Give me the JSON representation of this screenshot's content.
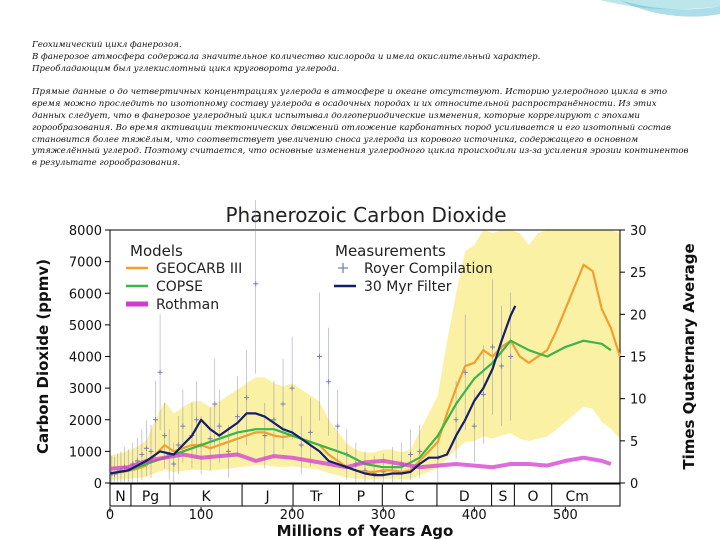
{
  "text": {
    "heading_lines": [
      "Геохимический цикл фанерозоя.",
      "В фанерозое атмосфера содержала значительное количество кислорода и имела окислительный характер.",
      "Преобладающим был углекислотный цикл круговорота углерода."
    ],
    "body": "Прямые данные о до четвертичных концентрациях углерода в атмосфере и океане отсутствуют. Историю углеродного цикла в это время можно проследить по изотопному составу углерода в осадочных породах и их относительной распространённости. Из этих данных следует, что в фанерозое углеродный цикл испытывал долгопериодические изменения, которые коррелируют с эпохами горообразования. Во время активации тектонических движений отложение карбонатных пород усиливается и его изотопный состав становится более тяжёлым, что соответствует увеличению сноса углерода из корового источника, содержащего в основном утяжелённый углерод. Поэтому считается, что основные изменения углеродного цикла происходили из-за усиления эрозии континентов в результате горообразования."
  },
  "chart_data": {
    "type": "line",
    "title": "Phanerozoic Carbon Dioxide",
    "xlabel": "Millions of Years Ago",
    "ylabel": "Carbon Dioxide (ppmv)",
    "y2label": "Times Quaternary Average",
    "xlim": [
      0,
      560
    ],
    "ylim": [
      0,
      8000
    ],
    "y2lim": [
      0,
      30
    ],
    "xticks": [
      0,
      100,
      200,
      300,
      400,
      500
    ],
    "yticks": [
      0,
      1000,
      2000,
      3000,
      4000,
      5000,
      6000,
      7000,
      8000
    ],
    "y2ticks": [
      0,
      5,
      10,
      15,
      20,
      25,
      30
    ],
    "legend_models_title": "Models",
    "legend_measurements_title": "Measurements",
    "series": [
      {
        "name": "GEOCARB III",
        "color": "#f0a030",
        "group": "Models",
        "x": [
          0,
          15,
          30,
          40,
          50,
          60,
          70,
          80,
          90,
          100,
          110,
          120,
          130,
          140,
          150,
          160,
          170,
          180,
          190,
          200,
          210,
          220,
          230,
          240,
          250,
          260,
          270,
          280,
          290,
          300,
          310,
          320,
          330,
          340,
          350,
          360,
          370,
          380,
          390,
          400,
          410,
          420,
          430,
          440,
          450,
          460,
          470,
          480,
          490,
          500,
          510,
          520,
          530,
          540,
          550,
          560
        ],
        "y": [
          300,
          350,
          450,
          550,
          900,
          1200,
          1000,
          1100,
          1200,
          1200,
          1100,
          1200,
          1300,
          1400,
          1500,
          1600,
          1600,
          1500,
          1450,
          1500,
          1400,
          1300,
          1200,
          900,
          700,
          500,
          400,
          350,
          350,
          400,
          400,
          350,
          400,
          700,
          1000,
          1300,
          2200,
          3000,
          3700,
          3800,
          4200,
          4000,
          4300,
          4500,
          4000,
          3800,
          4000,
          4200,
          4800,
          5500,
          6200,
          6900,
          6700,
          5500,
          4900,
          4000
        ]
      },
      {
        "name": "COPSE",
        "color": "#39b54a",
        "group": "Models",
        "x": [
          0,
          20,
          40,
          60,
          80,
          100,
          120,
          140,
          160,
          180,
          200,
          220,
          240,
          260,
          280,
          300,
          320,
          340,
          360,
          380,
          400,
          420,
          440,
          460,
          480,
          500,
          520,
          540,
          550
        ],
        "y": [
          300,
          400,
          600,
          800,
          1000,
          1200,
          1400,
          1600,
          1700,
          1700,
          1500,
          1300,
          1100,
          900,
          600,
          500,
          500,
          800,
          1500,
          2500,
          3300,
          3800,
          4500,
          4200,
          4000,
          4300,
          4500,
          4400,
          4200
        ]
      },
      {
        "name": "Rothman",
        "color": "#d23bd2",
        "group": "Models",
        "x": [
          0,
          20,
          40,
          60,
          80,
          100,
          120,
          140,
          160,
          180,
          200,
          220,
          240,
          260,
          280,
          300,
          320,
          340,
          360,
          380,
          400,
          420,
          440,
          460,
          480,
          500,
          520,
          540,
          550
        ],
        "y": [
          450,
          500,
          700,
          800,
          900,
          800,
          850,
          900,
          700,
          850,
          800,
          700,
          600,
          500,
          650,
          700,
          600,
          500,
          550,
          600,
          550,
          500,
          600,
          600,
          550,
          700,
          800,
          700,
          600
        ]
      },
      {
        "name": "30 Myr Filter",
        "color": "#14206e",
        "group": "Measurements",
        "x": [
          0,
          20,
          40,
          55,
          70,
          90,
          100,
          110,
          120,
          130,
          140,
          150,
          160,
          170,
          180,
          190,
          200,
          210,
          220,
          230,
          240,
          250,
          260,
          270,
          280,
          290,
          300,
          310,
          320,
          330,
          340,
          350,
          360,
          370,
          380,
          390,
          400,
          410,
          420,
          430,
          440,
          445
        ],
        "y": [
          300,
          400,
          700,
          1000,
          900,
          1500,
          2000,
          1700,
          1500,
          1700,
          1900,
          2200,
          2200,
          2100,
          1900,
          1700,
          1600,
          1400,
          1200,
          1000,
          700,
          600,
          500,
          400,
          300,
          250,
          250,
          300,
          300,
          350,
          600,
          800,
          800,
          900,
          1500,
          2000,
          2600,
          3000,
          3600,
          4500,
          5300,
          5600
        ]
      }
    ],
    "measurements": {
      "name": "Royer Compilation",
      "color": "#7a7fb8",
      "x": [
        2,
        5,
        8,
        12,
        16,
        20,
        25,
        30,
        35,
        40,
        45,
        50,
        55,
        60,
        65,
        70,
        75,
        80,
        90,
        95,
        100,
        110,
        115,
        120,
        130,
        140,
        150,
        160,
        170,
        180,
        190,
        200,
        210,
        220,
        230,
        240,
        250,
        260,
        270,
        280,
        290,
        300,
        310,
        320,
        330,
        340,
        360,
        380,
        390,
        400,
        410,
        420,
        430,
        440
      ],
      "y": [
        300,
        280,
        350,
        400,
        500,
        450,
        600,
        700,
        900,
        1100,
        1000,
        2000,
        3500,
        1500,
        900,
        600,
        1200,
        1800,
        1500,
        2000,
        1200,
        1400,
        2500,
        1800,
        1000,
        2100,
        2700,
        6300,
        1500,
        2000,
        2500,
        3000,
        1200,
        1600,
        4000,
        3200,
        1800,
        900,
        600,
        400,
        300,
        350,
        500,
        600,
        900,
        1000,
        800,
        2000,
        3500,
        1800,
        2800,
        4300,
        3700,
        4000
      ]
    },
    "uncertainty_band": {
      "label": "",
      "color": "#fbf1a4"
    },
    "periods": [
      "N",
      "Pg",
      "K",
      "J",
      "Tr",
      "P",
      "C",
      "D",
      "S",
      "O",
      "Cm"
    ],
    "period_boundaries": [
      0,
      23,
      66,
      145,
      201,
      252,
      299,
      359,
      419,
      444,
      485,
      541
    ]
  }
}
